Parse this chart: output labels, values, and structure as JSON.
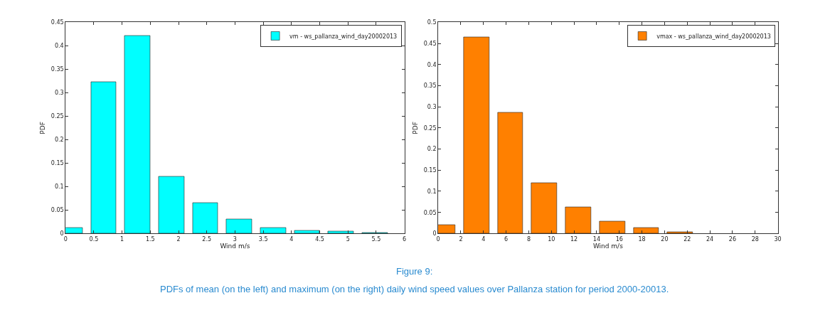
{
  "chart_data": [
    {
      "type": "bar",
      "xlabel": "Wind m/s",
      "ylabel": "PDF",
      "x": [
        0.075,
        0.675,
        1.275,
        1.875,
        2.475,
        3.075,
        3.675,
        4.275,
        4.875,
        5.475
      ],
      "series": [
        {
          "name": "vm - ws_pallanza_wind_day20002013",
          "color": "#00ffff",
          "values": [
            0.012,
            0.323,
            0.421,
            0.121,
            0.066,
            0.031,
            0.013,
            0.006,
            0.005,
            0.001
          ]
        }
      ],
      "xlim": [
        0,
        6
      ],
      "xticks": [
        0,
        0.5,
        1,
        1.5,
        2,
        2.5,
        3,
        3.5,
        4,
        4.5,
        5,
        5.5,
        6
      ],
      "ylim": [
        0,
        0.45
      ],
      "yticks": [
        0,
        0.05,
        0.1,
        0.15,
        0.2,
        0.25,
        0.3,
        0.35,
        0.4,
        0.45
      ],
      "legend": "top right"
    },
    {
      "type": "bar",
      "xlabel": "Wind m/s",
      "ylabel": "PDF",
      "x": [
        0.375,
        3.375,
        6.375,
        9.375,
        12.375,
        15.375,
        18.375,
        21.375
      ],
      "series": [
        {
          "name": "vmax - ws_pallanza_wind_day20002013",
          "color": "#ff8000",
          "values": [
            0.021,
            0.464,
            0.286,
            0.119,
            0.063,
            0.028,
            0.013,
            0.003
          ]
        }
      ],
      "xlim": [
        0,
        30
      ],
      "xticks": [
        0,
        2,
        4,
        6,
        8,
        10,
        12,
        14,
        16,
        18,
        20,
        22,
        24,
        26,
        28,
        30
      ],
      "ylim": [
        0,
        0.5
      ],
      "yticks": [
        0,
        0.05,
        0.1,
        0.15,
        0.2,
        0.25,
        0.3,
        0.35,
        0.4,
        0.45,
        0.5
      ],
      "legend": "top right",
      "annotations": [
        "Figure 9:",
        "PDFs of mean (on the left) and maximum (on the right) daily wind speed values over Pallanza station for period 2000-20013."
      ]
    }
  ]
}
